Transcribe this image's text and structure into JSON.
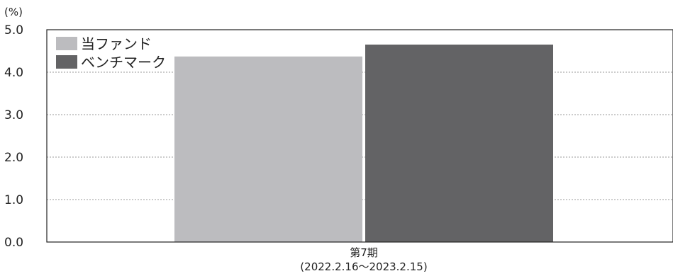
{
  "chart_data": {
    "type": "bar",
    "unit": "(%)",
    "categories": [
      "第7期"
    ],
    "category_sublabels": [
      "(2022.2.16～2023.2.15)"
    ],
    "series": [
      {
        "name": "当ファンド",
        "color": "#bcbcbf",
        "values": [
          4.37
        ]
      },
      {
        "name": "ベンチマーク",
        "color": "#636365",
        "values": [
          4.65
        ]
      }
    ],
    "ylim": [
      0.0,
      5.0
    ],
    "yticks": [
      "0.0",
      "1.0",
      "2.0",
      "3.0",
      "4.0",
      "5.0"
    ],
    "grid": true,
    "legend_position": "top-left"
  }
}
